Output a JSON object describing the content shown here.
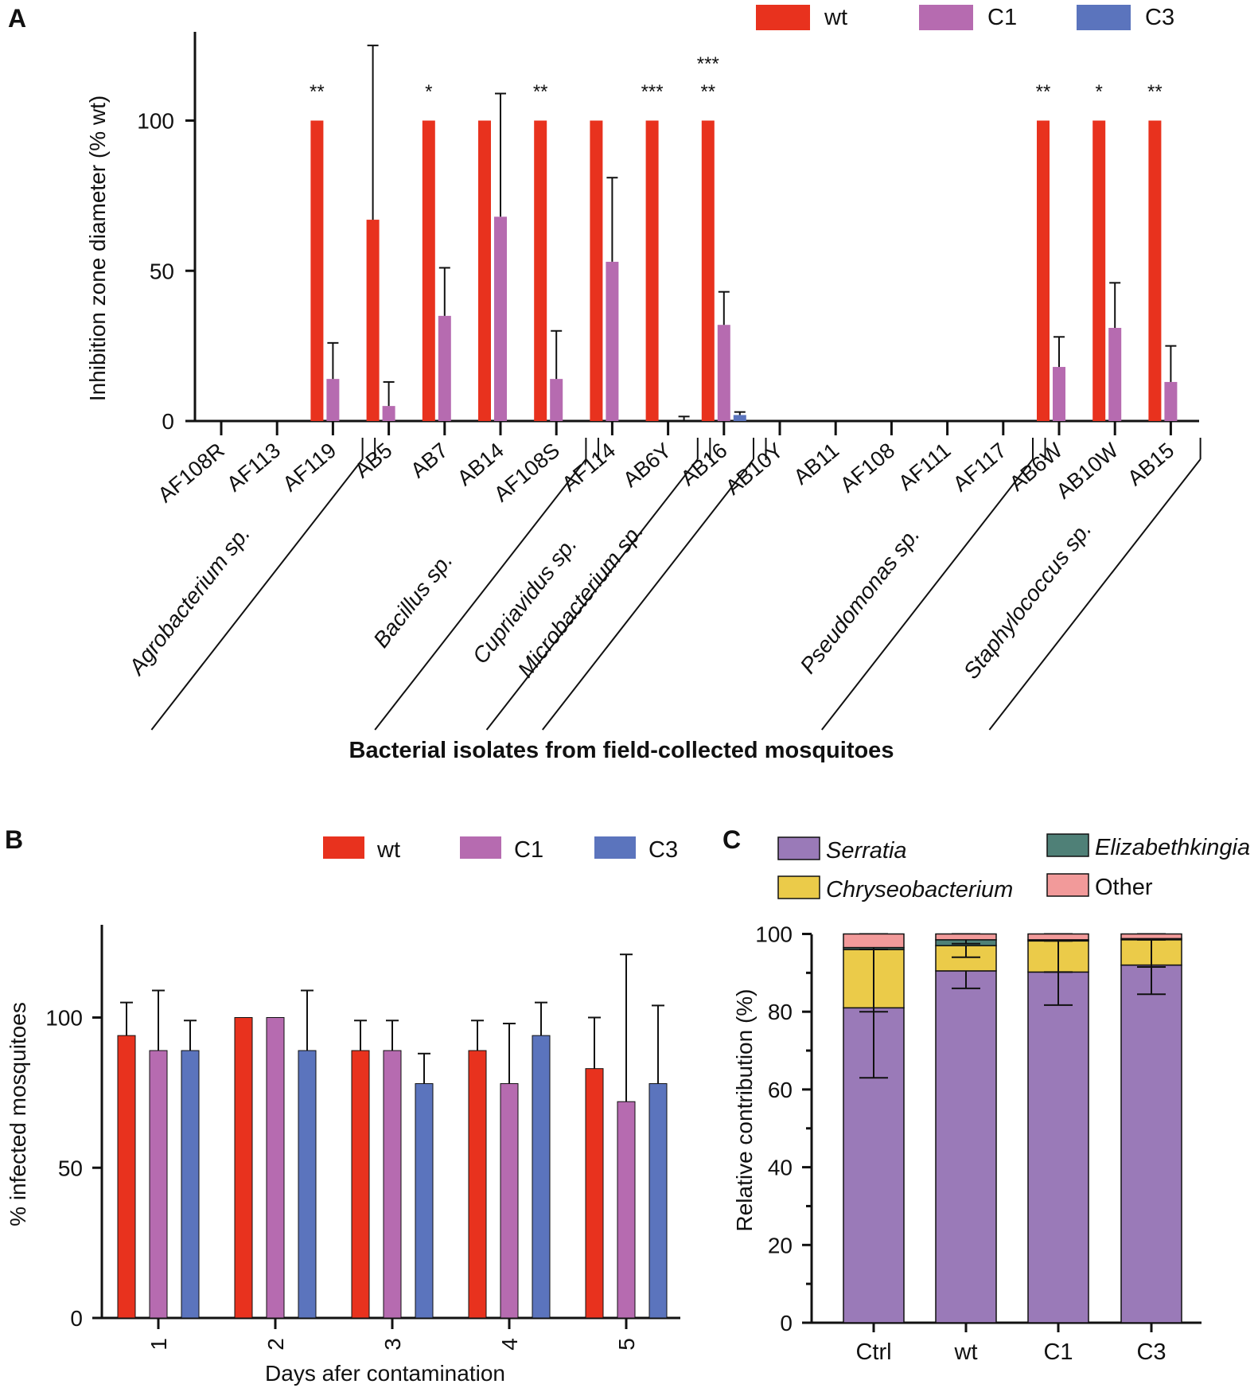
{
  "colors": {
    "wt": "#e8321e",
    "C1": "#b66bb0",
    "C3": "#5b74bd",
    "serratia": "#9a7ab8",
    "chryseo": "#ebcb49",
    "elizabeth": "#4f8077",
    "other": "#f29a9a"
  },
  "chart_data": [
    {
      "type": "bar",
      "panel": "A",
      "title": "",
      "ylabel": "Inhibition zone diameter (% wt)",
      "xlabel": "Bacterial isolates from field-collected mosquitoes",
      "ylim": [
        0,
        125
      ],
      "yticks": [
        "0",
        "50",
        "100"
      ],
      "legend": [
        "wt",
        "C1",
        "C3"
      ],
      "categories": [
        "AF108R",
        "AF113",
        "AF119",
        "AB5",
        "AB7",
        "AB14",
        "AF108S",
        "AF114",
        "AB6Y",
        "AB16",
        "AB10Y",
        "AB11",
        "AF108",
        "AF111",
        "AF117",
        "AB6W",
        "AB10W",
        "AB15"
      ],
      "series": [
        {
          "name": "wt",
          "values": [
            0,
            0,
            100,
            67,
            100,
            100,
            100,
            100,
            100,
            100,
            0,
            0,
            0,
            0,
            0,
            100,
            100,
            100
          ],
          "errors": [
            0,
            0,
            0,
            58,
            0,
            0,
            0,
            0,
            0,
            0,
            0,
            0,
            0,
            0,
            0,
            0,
            0,
            0
          ]
        },
        {
          "name": "C1",
          "values": [
            0,
            0,
            14,
            5,
            35,
            68,
            14,
            53,
            0,
            32,
            0,
            0,
            0,
            0,
            0,
            18,
            31,
            13
          ],
          "errors": [
            0,
            0,
            12,
            8,
            16,
            41,
            16,
            28,
            0,
            11,
            0,
            0,
            0,
            0,
            0,
            10,
            15,
            12
          ]
        },
        {
          "name": "C3",
          "values": [
            0,
            0,
            0,
            0,
            0,
            0,
            0,
            0,
            0,
            2,
            0,
            0,
            0,
            0,
            0,
            0,
            0,
            0
          ],
          "errors": [
            0,
            0,
            0,
            0,
            0,
            0,
            0,
            0,
            1.5,
            1,
            0,
            0,
            0,
            0,
            0,
            0,
            0,
            0
          ]
        }
      ],
      "significance": [
        {
          "category": "AF119",
          "label": "**",
          "series": "C1"
        },
        {
          "category": "AB7",
          "label": "*",
          "series": "C1"
        },
        {
          "category": "AF108S",
          "label": "**",
          "series": "C1"
        },
        {
          "category": "AB6Y",
          "label": "***",
          "series": "C1"
        },
        {
          "category": "AB16",
          "label": "**",
          "series": "C1"
        },
        {
          "category": "AB16",
          "label": "***",
          "series": "C3"
        },
        {
          "category": "AB6W",
          "label": "**",
          "series": "C1"
        },
        {
          "category": "AB10W",
          "label": "*",
          "series": "C1"
        },
        {
          "category": "AB15",
          "label": "**",
          "series": "C1"
        }
      ],
      "genera": [
        {
          "name": "Agrobacterium sp.",
          "from": 0,
          "to": 2
        },
        {
          "name": "Bacillus sp.",
          "from": 3,
          "to": 6
        },
        {
          "name": "Cupriavidus sp.",
          "from": 7,
          "to": 8
        },
        {
          "name": "Microbacterium sp.",
          "from": 9,
          "to": 9
        },
        {
          "name": "Pseudomonas sp.",
          "from": 10,
          "to": 14
        },
        {
          "name": "Staphylococcus sp.",
          "from": 15,
          "to": 17
        }
      ]
    },
    {
      "type": "bar",
      "panel": "B",
      "ylabel": "% infected mosquitoes",
      "xlabel": "Days afer contamination",
      "ylim": [
        0,
        130
      ],
      "yticks": [
        "0",
        "50",
        "100"
      ],
      "legend": [
        "wt",
        "C1",
        "C3"
      ],
      "categories": [
        "1",
        "2",
        "3",
        "4",
        "5"
      ],
      "series": [
        {
          "name": "wt",
          "values": [
            94,
            100,
            89,
            89,
            83
          ],
          "errors": [
            11,
            0,
            10,
            10,
            17
          ]
        },
        {
          "name": "C1",
          "values": [
            89,
            100,
            89,
            78,
            72
          ],
          "errors": [
            20,
            0,
            10,
            20,
            49
          ]
        },
        {
          "name": "C3",
          "values": [
            89,
            89,
            78,
            94,
            78
          ],
          "errors": [
            10,
            20,
            10,
            11,
            26
          ]
        }
      ]
    },
    {
      "type": "stacked-bar",
      "panel": "C",
      "ylabel": "Relative contribution (%)",
      "ylim": [
        0,
        100
      ],
      "yticks": [
        "0",
        "20",
        "40",
        "60",
        "80",
        "100"
      ],
      "categories": [
        "Ctrl",
        "wt",
        "C1",
        "C3"
      ],
      "legend": [
        "Serratia",
        "Elizabethkingia",
        "Chryseobacterium",
        "Other"
      ],
      "series": [
        {
          "name": "Serratia",
          "values": [
            81,
            90.5,
            90.2,
            92
          ],
          "errors": [
            18,
            4.5,
            8.5,
            7.5
          ]
        },
        {
          "name": "Chryseobacterium",
          "values": [
            15,
            6.5,
            8,
            6.5
          ],
          "errors": [
            16,
            3,
            8,
            7
          ]
        },
        {
          "name": "Elizabethkingia",
          "values": [
            0.5,
            1.5,
            0.3,
            0.3
          ],
          "errors": [
            0.5,
            1,
            0.3,
            0.3
          ]
        },
        {
          "name": "Other",
          "values": [
            3.5,
            1.5,
            1.5,
            1.2
          ],
          "errors": [
            0,
            0,
            0,
            0
          ]
        }
      ]
    }
  ],
  "panels": {
    "a": "A",
    "b": "B",
    "c": "C"
  }
}
